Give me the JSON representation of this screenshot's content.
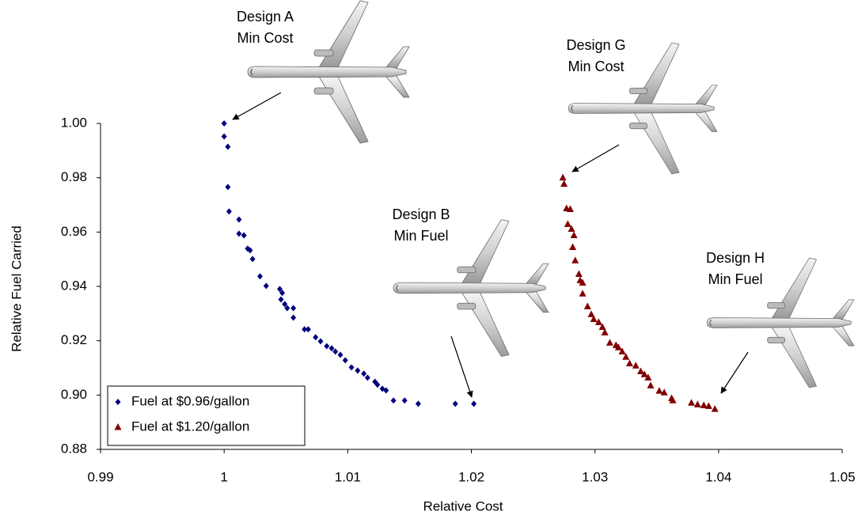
{
  "chart_data": {
    "type": "scatter",
    "x_label": "Relative Cost",
    "y_label": "Relative Fuel Carried",
    "xlim": [
      0.99,
      1.05
    ],
    "xticks": [
      0.99,
      1,
      1.01,
      1.02,
      1.03,
      1.04,
      1.05
    ],
    "ylim": [
      0.88,
      1.0
    ],
    "yticks": [
      0.88,
      {
        "value": 0.9,
        "label": "0.90"
      },
      0.92,
      0.94,
      0.96,
      0.98,
      {
        "value": 1.0,
        "label": "1.00"
      }
    ],
    "grid": false,
    "legend": "lower left",
    "annotations": [
      [
        "Design A",
        "Min Cost"
      ],
      [
        "Design B",
        "Min Fuel"
      ],
      [
        "Design G",
        "Min Cost"
      ],
      [
        "Design H",
        "Min Fuel"
      ]
    ],
    "series": [
      {
        "name": "Fuel at $0.96/gallon",
        "color": "#000080",
        "marker": "diamond",
        "x": [
          1.0,
          1.0,
          1.0003,
          1.0003,
          1.0004,
          1.0012,
          1.0012,
          1.0016,
          1.0019,
          1.0021,
          1.0023,
          1.0029,
          1.0034,
          1.0045,
          1.0047,
          1.0046,
          1.0049,
          1.0051,
          1.0056,
          1.0056,
          1.0065,
          1.0068,
          1.0074,
          1.0078,
          1.0083,
          1.0087,
          1.009,
          1.0094,
          1.0098,
          1.0103,
          1.0108,
          1.0113,
          1.0116,
          1.0122,
          1.0124,
          1.0128,
          1.0131,
          1.0137,
          1.0146,
          1.0157,
          1.0187,
          1.0202
        ],
        "values": [
          1.0,
          0.9952,
          0.9914,
          0.9766,
          0.9676,
          0.9646,
          0.9594,
          0.9588,
          0.9539,
          0.9533,
          0.9501,
          0.9437,
          0.9402,
          0.939,
          0.9376,
          0.9352,
          0.9335,
          0.932,
          0.932,
          0.9285,
          0.9242,
          0.9242,
          0.9213,
          0.9198,
          0.918,
          0.9172,
          0.916,
          0.9148,
          0.9128,
          0.9102,
          0.909,
          0.9079,
          0.9064,
          0.9049,
          0.9038,
          0.9023,
          0.9017,
          0.898,
          0.898,
          0.8968,
          0.8968,
          0.8968
        ]
      },
      {
        "name": "Fuel at $1.20/gallon",
        "color": "#800000",
        "marker": "triangle",
        "x": [
          1.0274,
          1.0275,
          1.0277,
          1.028,
          1.0278,
          1.0281,
          1.0283,
          1.0282,
          1.0284,
          1.0287,
          1.0288,
          1.029,
          1.029,
          1.0294,
          1.0297,
          1.0299,
          1.0303,
          1.0306,
          1.0308,
          1.0312,
          1.0317,
          1.0319,
          1.0322,
          1.0325,
          1.0328,
          1.0333,
          1.0337,
          1.034,
          1.0343,
          1.0345,
          1.0352,
          1.0356,
          1.0362,
          1.0363,
          1.0378,
          1.0383,
          1.0388,
          1.0392,
          1.0397
        ],
        "values": [
          0.98,
          0.9777,
          0.9687,
          0.9684,
          0.9629,
          0.9611,
          0.9588,
          0.9544,
          0.9495,
          0.9445,
          0.9422,
          0.9413,
          0.9373,
          0.9326,
          0.9297,
          0.9279,
          0.9268,
          0.925,
          0.923,
          0.9192,
          0.9183,
          0.9175,
          0.916,
          0.914,
          0.9116,
          0.9108,
          0.9087,
          0.9076,
          0.9064,
          0.9035,
          0.9015,
          0.9009,
          0.8988,
          0.898,
          0.8971,
          0.8965,
          0.8962,
          0.8959,
          0.8948
        ]
      }
    ]
  }
}
